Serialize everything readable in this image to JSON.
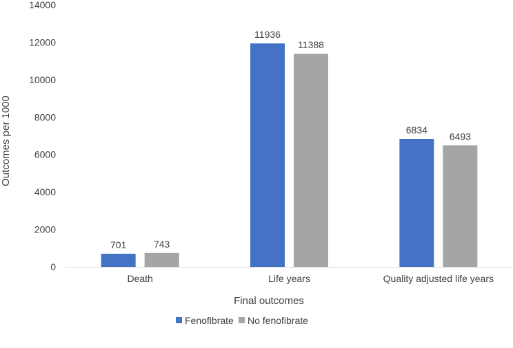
{
  "chart_data": {
    "type": "bar",
    "title": "",
    "xlabel": "Final outcomes",
    "ylabel": "Outcomes per 1000",
    "categories": [
      "Death",
      "Life years",
      "Quality adjusted life years"
    ],
    "series": [
      {
        "name": "Fenofibrate",
        "values": [
          701,
          11936,
          6834
        ]
      },
      {
        "name": "No fenofibrate",
        "values": [
          743,
          11388,
          6493
        ]
      }
    ],
    "ylim": [
      0,
      14000
    ],
    "yticks": [
      0,
      2000,
      4000,
      6000,
      8000,
      10000,
      12000,
      14000
    ],
    "grid": false,
    "legend_position": "bottom",
    "data_labels": true
  },
  "colors": {
    "series": [
      "#4472c4",
      "#a5a5a5"
    ],
    "text": "#404040",
    "axis": "#d9d9d9"
  }
}
